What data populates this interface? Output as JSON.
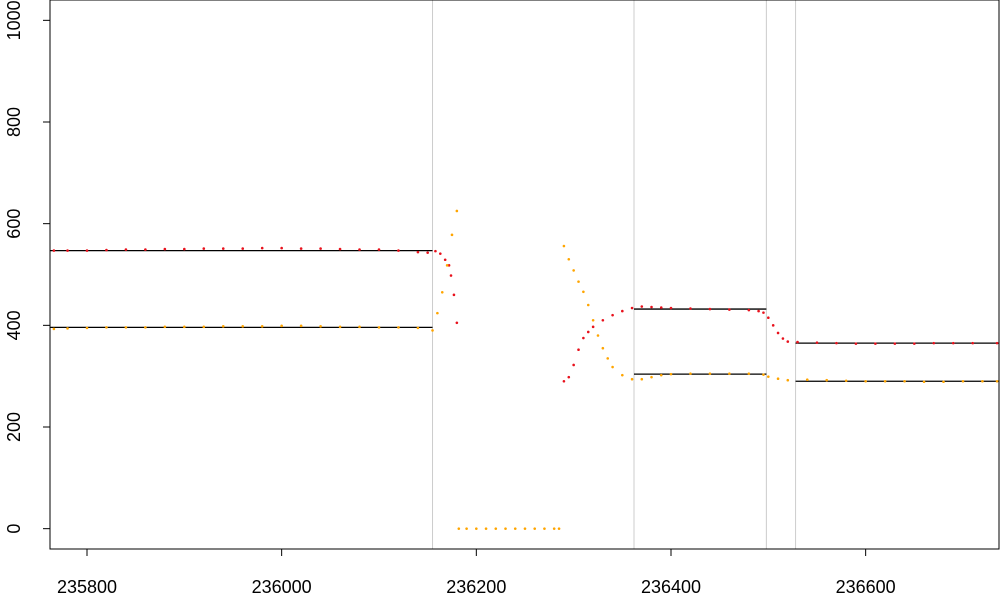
{
  "chart_data": {
    "type": "scatter",
    "title": "",
    "xlabel": "",
    "ylabel": "",
    "xlim": [
      235762,
      236737
    ],
    "ylim": [
      -40,
      1040
    ],
    "xticks": [
      235800,
      236000,
      236200,
      236400,
      236600
    ],
    "yticks": [
      0,
      200,
      400,
      600,
      800,
      1000
    ],
    "grid": false,
    "legend": "none",
    "colors": {
      "red": "#e8111c",
      "orange": "#ffa500",
      "segment": "#000000",
      "breakpoint": "#cccccc"
    },
    "breakpoints": [
      236155,
      236362,
      236498,
      236528
    ],
    "segments": [
      {
        "series": "red",
        "x0": 235762,
        "x1": 236155,
        "y": 547
      },
      {
        "series": "orange",
        "x0": 235762,
        "x1": 236155,
        "y": 396
      },
      {
        "series": "red",
        "x0": 236362,
        "x1": 236498,
        "y": 432
      },
      {
        "series": "orange",
        "x0": 236362,
        "x1": 236498,
        "y": 304
      },
      {
        "series": "red",
        "x0": 236528,
        "x1": 236737,
        "y": 365
      },
      {
        "series": "orange",
        "x0": 236528,
        "x1": 236737,
        "y": 290
      }
    ],
    "series": [
      {
        "color": "red",
        "points": [
          [
            235766,
            547
          ],
          [
            235780,
            547
          ],
          [
            235800,
            547
          ],
          [
            235820,
            548
          ],
          [
            235840,
            549
          ],
          [
            235860,
            549
          ],
          [
            235880,
            550
          ],
          [
            235900,
            550
          ],
          [
            235920,
            551
          ],
          [
            235940,
            551
          ],
          [
            235960,
            551
          ],
          [
            235980,
            552
          ],
          [
            236000,
            552
          ],
          [
            236020,
            551
          ],
          [
            236040,
            551
          ],
          [
            236060,
            550
          ],
          [
            236080,
            549
          ],
          [
            236100,
            549
          ],
          [
            236120,
            547
          ],
          [
            236140,
            544
          ],
          [
            236150,
            543
          ],
          [
            236158,
            546
          ],
          [
            236163,
            541
          ],
          [
            236168,
            529
          ],
          [
            236172,
            518
          ],
          [
            236174,
            498
          ],
          [
            236177,
            460
          ],
          [
            236180,
            405
          ],
          [
            236290,
            290
          ],
          [
            236295,
            298
          ],
          [
            236300,
            322
          ],
          [
            236305,
            352
          ],
          [
            236310,
            375
          ],
          [
            236315,
            387
          ],
          [
            236320,
            397
          ],
          [
            236330,
            410
          ],
          [
            236340,
            420
          ],
          [
            236350,
            428
          ],
          [
            236360,
            434
          ],
          [
            236370,
            437
          ],
          [
            236380,
            436
          ],
          [
            236390,
            435
          ],
          [
            236400,
            434
          ],
          [
            236420,
            433
          ],
          [
            236440,
            432
          ],
          [
            236460,
            431
          ],
          [
            236480,
            430
          ],
          [
            236490,
            428
          ],
          [
            236495,
            425
          ],
          [
            236500,
            415
          ],
          [
            236505,
            400
          ],
          [
            236510,
            385
          ],
          [
            236515,
            374
          ],
          [
            236520,
            368
          ],
          [
            236530,
            367
          ],
          [
            236550,
            366
          ],
          [
            236570,
            365
          ],
          [
            236590,
            364
          ],
          [
            236610,
            364
          ],
          [
            236630,
            364
          ],
          [
            236650,
            364
          ],
          [
            236670,
            365
          ],
          [
            236690,
            365
          ],
          [
            236710,
            365
          ],
          [
            236735,
            365
          ]
        ]
      },
      {
        "color": "orange",
        "points": [
          [
            235766,
            393
          ],
          [
            235780,
            394
          ],
          [
            235800,
            395
          ],
          [
            235820,
            396
          ],
          [
            235840,
            396
          ],
          [
            235860,
            396
          ],
          [
            235880,
            397
          ],
          [
            235900,
            397
          ],
          [
            235920,
            397
          ],
          [
            235940,
            398
          ],
          [
            235960,
            398
          ],
          [
            235980,
            398
          ],
          [
            236000,
            399
          ],
          [
            236020,
            399
          ],
          [
            236040,
            398
          ],
          [
            236060,
            397
          ],
          [
            236080,
            397
          ],
          [
            236100,
            396
          ],
          [
            236120,
            396
          ],
          [
            236140,
            395
          ],
          [
            236155,
            390
          ],
          [
            236160,
            424
          ],
          [
            236165,
            465
          ],
          [
            236170,
            518
          ],
          [
            236175,
            578
          ],
          [
            236180,
            625
          ],
          [
            236182,
            0
          ],
          [
            236190,
            0
          ],
          [
            236200,
            0
          ],
          [
            236210,
            0
          ],
          [
            236220,
            0
          ],
          [
            236230,
            0
          ],
          [
            236240,
            0
          ],
          [
            236250,
            0
          ],
          [
            236260,
            0
          ],
          [
            236270,
            0
          ],
          [
            236280,
            0
          ],
          [
            236285,
            0
          ],
          [
            236290,
            556
          ],
          [
            236295,
            530
          ],
          [
            236300,
            508
          ],
          [
            236305,
            486
          ],
          [
            236310,
            466
          ],
          [
            236315,
            440
          ],
          [
            236320,
            410
          ],
          [
            236325,
            380
          ],
          [
            236330,
            355
          ],
          [
            236335,
            335
          ],
          [
            236340,
            318
          ],
          [
            236350,
            302
          ],
          [
            236360,
            294
          ],
          [
            236370,
            294
          ],
          [
            236380,
            298
          ],
          [
            236390,
            302
          ],
          [
            236400,
            304
          ],
          [
            236420,
            305
          ],
          [
            236440,
            305
          ],
          [
            236460,
            305
          ],
          [
            236480,
            305
          ],
          [
            236495,
            303
          ],
          [
            236500,
            299
          ],
          [
            236510,
            295
          ],
          [
            236520,
            292
          ],
          [
            236540,
            293
          ],
          [
            236560,
            292
          ],
          [
            236580,
            291
          ],
          [
            236600,
            290
          ],
          [
            236620,
            290
          ],
          [
            236640,
            290
          ],
          [
            236660,
            289
          ],
          [
            236680,
            289
          ],
          [
            236700,
            290
          ],
          [
            236720,
            290
          ],
          [
            236735,
            290
          ]
        ]
      }
    ]
  }
}
